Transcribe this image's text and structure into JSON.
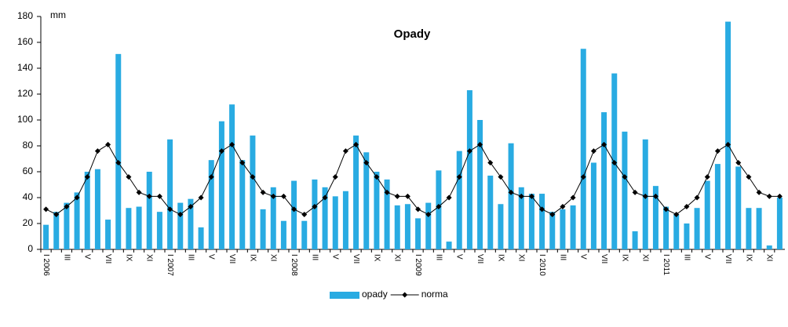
{
  "chart_data": {
    "type": "bar_line",
    "title": "Opady",
    "y_label": "mm",
    "categories": [
      "I 2006",
      null,
      "III",
      null,
      "V",
      null,
      "VII",
      null,
      "IX",
      null,
      "XI",
      null,
      "I 2007",
      null,
      "III",
      null,
      "V",
      null,
      "VII",
      null,
      "IX",
      null,
      "XI",
      null,
      "I 2008",
      null,
      "III",
      null,
      "V",
      null,
      "VII",
      null,
      "IX",
      null,
      "XI",
      null,
      "I 2009",
      null,
      "III",
      null,
      "V",
      null,
      "VII",
      null,
      "IX",
      null,
      "XI",
      null,
      "I 2010",
      null,
      "III",
      null,
      "V",
      null,
      "VII",
      null,
      "IX",
      null,
      "XI",
      null,
      "I 2011",
      null,
      "III",
      null,
      "V",
      null,
      "VII",
      null,
      "IX",
      null,
      "XI",
      null
    ],
    "series": [
      {
        "name": "opady",
        "type": "bar",
        "color": "#29abe2",
        "values": [
          19,
          29,
          36,
          44,
          60,
          62,
          23,
          151,
          32,
          33,
          60,
          29,
          85,
          36,
          39,
          17,
          69,
          99,
          112,
          69,
          88,
          31,
          48,
          22,
          53,
          22,
          54,
          48,
          41,
          45,
          88,
          75,
          60,
          54,
          34,
          35,
          24,
          36,
          61,
          6,
          76,
          123,
          100,
          57,
          35,
          82,
          48,
          43,
          43,
          29,
          31,
          34,
          155,
          67,
          106,
          136,
          91,
          14,
          85,
          49,
          33,
          27,
          20,
          32,
          53,
          66,
          176,
          64,
          32,
          32,
          3,
          40
        ]
      },
      {
        "name": "norma",
        "type": "line",
        "color": "#000000",
        "values": [
          31,
          27,
          33,
          40,
          56,
          76,
          81,
          67,
          56,
          44,
          41,
          41,
          31,
          27,
          33,
          40,
          56,
          76,
          81,
          67,
          56,
          44,
          41,
          41,
          31,
          27,
          33,
          40,
          56,
          76,
          81,
          67,
          56,
          44,
          41,
          41,
          31,
          27,
          33,
          40,
          56,
          76,
          81,
          67,
          56,
          44,
          41,
          41,
          31,
          27,
          33,
          40,
          56,
          76,
          81,
          67,
          56,
          44,
          41,
          41,
          31,
          27,
          33,
          40,
          56,
          76,
          81,
          67,
          56,
          44,
          41,
          41
        ]
      }
    ],
    "ylim": [
      0,
      180
    ],
    "yticks": [
      0,
      20,
      40,
      60,
      80,
      100,
      120,
      140,
      160,
      180
    ],
    "grid": false,
    "legend": "bottom"
  }
}
